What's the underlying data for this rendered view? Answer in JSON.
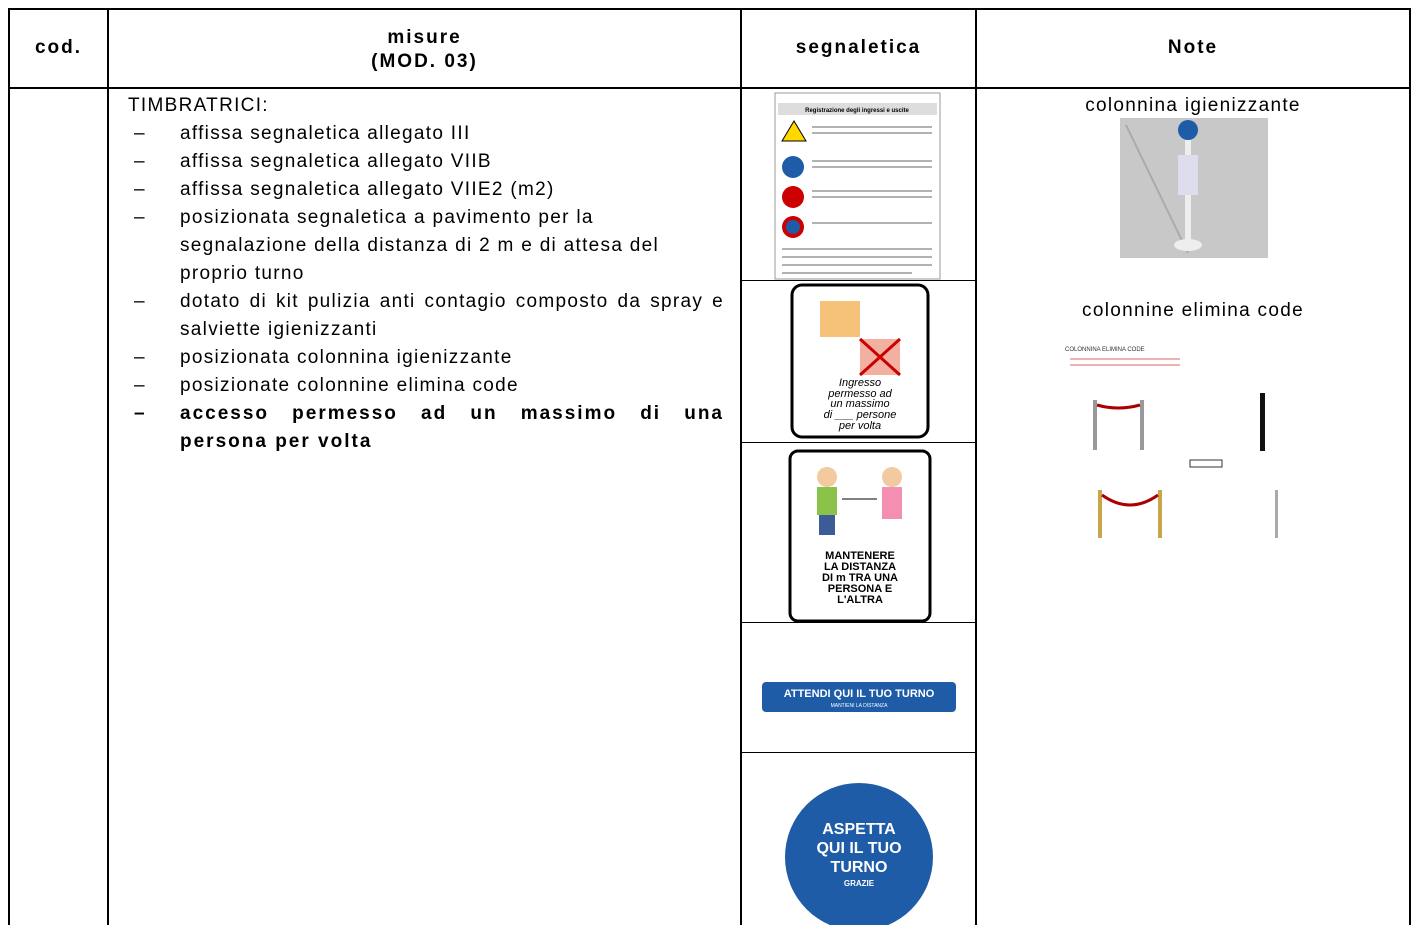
{
  "header": {
    "cod": "cod.",
    "misure": "misure",
    "mod": "(MOD. 03)",
    "segnaletica": "segnaletica",
    "note": "Note"
  },
  "misure": {
    "heading": "TIMBRATRICI:",
    "items": [
      "affissa segnaletica allegato III",
      "affissa segnaletica allegato VIIB",
      "affissa segnaletica allegato VIIE2 (m2)",
      "posizionata segnaletica a pavimento per la segnalazione della distanza di 2 m e di attesa del proprio turno",
      "dotato di kit pulizia anti contagio composto da spray e salviette igienizzanti",
      "posizionata colonnina igienizzante",
      "posizionate colonnine elimina code"
    ],
    "bold_item": "accesso permesso ad un massimo di una persona per volta"
  },
  "signs": {
    "registro": "Registrazione degli ingressi e uscite",
    "ingresso": [
      "Ingresso",
      "permesso ad",
      "un massimo",
      "di ___ persone",
      "per volta"
    ],
    "distanza": [
      "MANTENERE",
      "LA DISTANZA",
      "DI m TRA UNA",
      "PERSONA E",
      "L'ALTRA"
    ],
    "attendi": [
      "ATTENDI QUI IL TUO TURNO",
      "MANTIENI LA DISTANZA"
    ],
    "aspetta": [
      "ASPETTA",
      "QUI IL TUO",
      "TURNO",
      "GRAZIE"
    ]
  },
  "notes": {
    "colonnina": "colonnina igienizzante",
    "elimina": "colonnine elimina code",
    "elimina_image_title": "COLONNINA ELIMINA CODE"
  }
}
